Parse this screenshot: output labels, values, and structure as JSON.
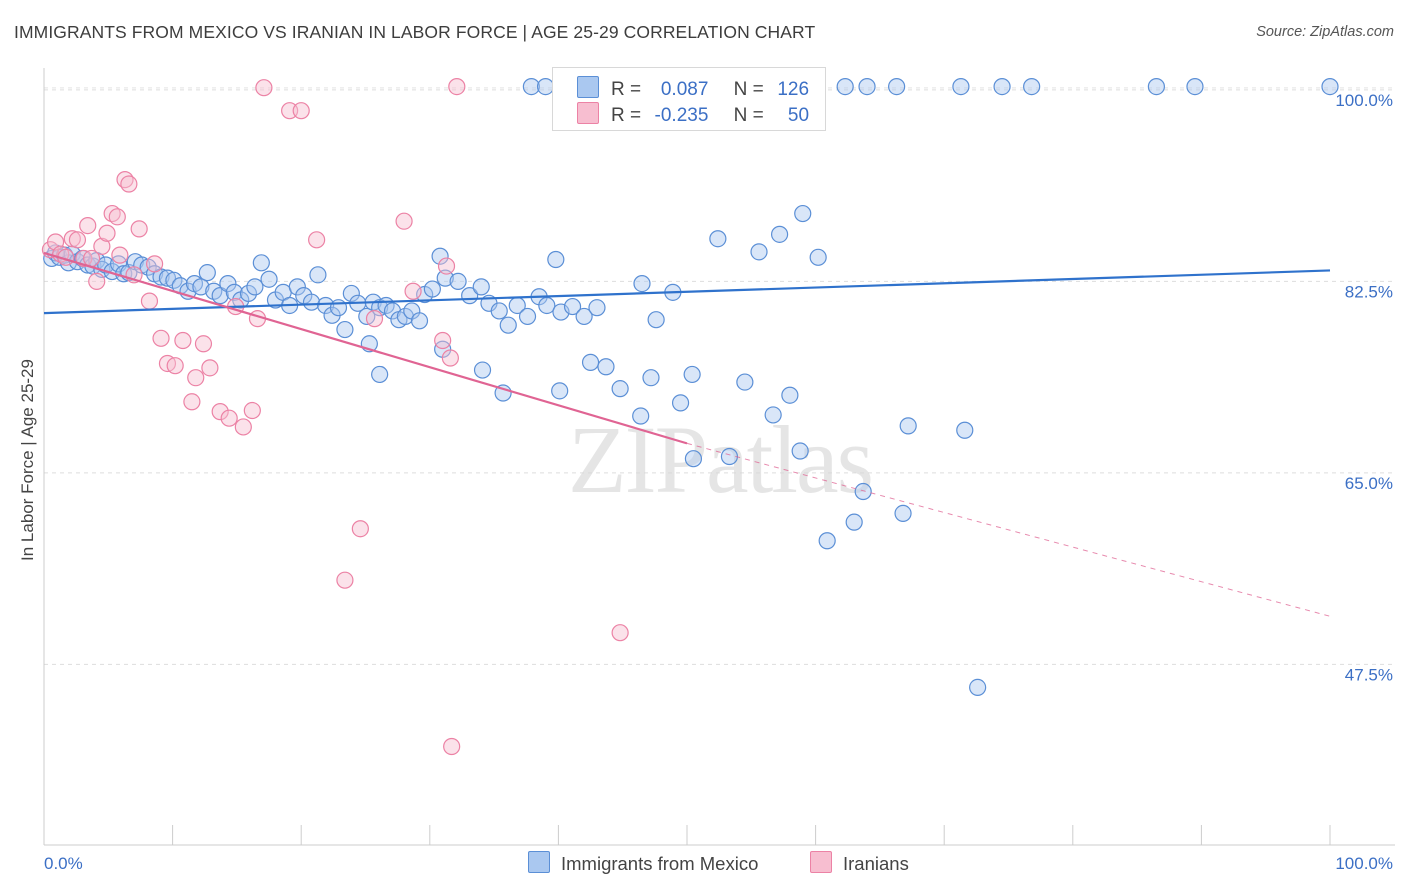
{
  "title": "IMMIGRANTS FROM MEXICO VS IRANIAN IN LABOR FORCE | AGE 25-29 CORRELATION CHART",
  "source": "Source: ZipAtlas.com",
  "watermark": "ZIPatlas",
  "legend": {
    "rows": [
      {
        "r_label": "R =",
        "r_value": "0.087",
        "n_label": "N =",
        "n_value": "126"
      },
      {
        "r_label": "R =",
        "r_value": "-0.235",
        "n_label": "N =",
        "n_value": "50"
      }
    ]
  },
  "bottom_legend": [
    "Immigrants from Mexico",
    "Iranians"
  ],
  "colors": {
    "blue_fill": "#aac8f0",
    "blue_stroke": "#5b8fd6",
    "blue_line": "#2f72cc",
    "pink_fill": "#f7bed0",
    "pink_stroke": "#ec82a5",
    "pink_line": "#e06493",
    "axis_text": "#3b6fc5"
  },
  "chart_data": {
    "type": "scatter",
    "title": "IMMIGRANTS FROM MEXICO VS IRANIAN IN LABOR FORCE | AGE 25-29 CORRELATION CHART",
    "xlabel": "",
    "ylabel": "In Labor Force | Age 25-29",
    "xlim": [
      0,
      100
    ],
    "ylim": [
      31,
      102
    ],
    "x_tick_labels": [
      "0.0%",
      "100.0%"
    ],
    "y_ticks": [
      47.5,
      65.0,
      82.5,
      100.0
    ],
    "y_tick_labels": [
      "47.5%",
      "65.0%",
      "82.5%",
      "100.0%"
    ],
    "grid": "horizontal dashed",
    "legend_position": "top-center",
    "series": [
      {
        "name": "Immigrants from Mexico",
        "trend": {
          "x": [
            0,
            100
          ],
          "y": [
            79.6,
            83.5
          ]
        },
        "points": [
          [
            0.6,
            84.6
          ],
          [
            0.9,
            85.1
          ],
          [
            1.2,
            84.7
          ],
          [
            1.6,
            84.9
          ],
          [
            1.9,
            84.2
          ],
          [
            2.2,
            85.0
          ],
          [
            2.6,
            84.3
          ],
          [
            3.0,
            84.6
          ],
          [
            3.4,
            84.0
          ],
          [
            3.8,
            83.9
          ],
          [
            4.1,
            84.4
          ],
          [
            4.5,
            83.6
          ],
          [
            4.8,
            84.0
          ],
          [
            5.3,
            83.4
          ],
          [
            5.8,
            84.1
          ],
          [
            6.2,
            83.2
          ],
          [
            6.6,
            83.3
          ],
          [
            7.1,
            84.3
          ],
          [
            7.6,
            84.0
          ],
          [
            8.1,
            83.8
          ],
          [
            8.6,
            83.2
          ],
          [
            9.1,
            82.9
          ],
          [
            9.6,
            82.8
          ],
          [
            10.1,
            82.6
          ],
          [
            10.6,
            82.1
          ],
          [
            11.2,
            81.6
          ],
          [
            11.7,
            82.3
          ],
          [
            12.2,
            82.0
          ],
          [
            12.7,
            83.3
          ],
          [
            13.2,
            81.6
          ],
          [
            13.7,
            81.2
          ],
          [
            14.3,
            82.3
          ],
          [
            14.8,
            81.5
          ],
          [
            15.3,
            80.8
          ],
          [
            15.9,
            81.4
          ],
          [
            16.4,
            82.0
          ],
          [
            16.9,
            84.2
          ],
          [
            17.5,
            82.7
          ],
          [
            18.0,
            80.8
          ],
          [
            18.6,
            81.5
          ],
          [
            19.1,
            80.3
          ],
          [
            19.7,
            82.0
          ],
          [
            20.2,
            81.2
          ],
          [
            20.8,
            80.6
          ],
          [
            21.3,
            83.1
          ],
          [
            21.9,
            80.3
          ],
          [
            22.4,
            79.4
          ],
          [
            22.9,
            80.1
          ],
          [
            23.4,
            78.1
          ],
          [
            23.9,
            81.4
          ],
          [
            24.4,
            80.5
          ],
          [
            25.1,
            79.3
          ],
          [
            25.6,
            80.6
          ],
          [
            26.1,
            80.1
          ],
          [
            26.6,
            80.3
          ],
          [
            27.1,
            79.8
          ],
          [
            27.6,
            79.0
          ],
          [
            28.1,
            79.3
          ],
          [
            28.6,
            79.8
          ],
          [
            29.2,
            78.9
          ],
          [
            29.6,
            81.3
          ],
          [
            30.2,
            81.8
          ],
          [
            30.8,
            84.8
          ],
          [
            31.2,
            82.8
          ],
          [
            32.2,
            82.5
          ],
          [
            33.1,
            81.2
          ],
          [
            34.0,
            82.0
          ],
          [
            34.6,
            80.5
          ],
          [
            35.4,
            79.8
          ],
          [
            36.1,
            78.5
          ],
          [
            36.8,
            80.3
          ],
          [
            37.6,
            79.3
          ],
          [
            38.5,
            81.1
          ],
          [
            39.1,
            80.3
          ],
          [
            39.8,
            84.5
          ],
          [
            40.2,
            79.7
          ],
          [
            41.1,
            80.2
          ],
          [
            42.0,
            79.3
          ],
          [
            43.0,
            80.1
          ],
          [
            46.5,
            82.3
          ],
          [
            47.6,
            79.0
          ],
          [
            48.9,
            81.5
          ],
          [
            52.4,
            86.4
          ],
          [
            55.6,
            85.2
          ],
          [
            57.2,
            86.8
          ],
          [
            59.0,
            88.7
          ],
          [
            60.2,
            84.7
          ],
          [
            37.9,
            100.3
          ],
          [
            39.0,
            100.3
          ],
          [
            42.5,
            100.3
          ],
          [
            43.0,
            100.3
          ],
          [
            43.7,
            100.3
          ],
          [
            46.1,
            100.3
          ],
          [
            48.4,
            100.3
          ],
          [
            50.2,
            100.3
          ],
          [
            52.1,
            100.3
          ],
          [
            53.9,
            100.3
          ],
          [
            55.7,
            100.3
          ],
          [
            60.1,
            100.3
          ],
          [
            62.3,
            100.3
          ],
          [
            64.0,
            100.3
          ],
          [
            66.3,
            100.3
          ],
          [
            71.3,
            100.3
          ],
          [
            74.5,
            100.3
          ],
          [
            76.8,
            100.3
          ],
          [
            86.5,
            100.3
          ],
          [
            89.5,
            100.3
          ],
          [
            100.0,
            100.3
          ],
          [
            25.3,
            76.8
          ],
          [
            26.1,
            74.0
          ],
          [
            31.0,
            76.3
          ],
          [
            34.1,
            74.4
          ],
          [
            35.7,
            72.3
          ],
          [
            40.1,
            72.5
          ],
          [
            42.5,
            75.1
          ],
          [
            43.7,
            74.7
          ],
          [
            44.8,
            72.7
          ],
          [
            46.4,
            70.2
          ],
          [
            47.2,
            73.7
          ],
          [
            49.5,
            71.4
          ],
          [
            50.4,
            74.0
          ],
          [
            50.5,
            66.3
          ],
          [
            53.3,
            66.5
          ],
          [
            54.5,
            73.3
          ],
          [
            56.7,
            70.3
          ],
          [
            58.0,
            72.1
          ],
          [
            58.8,
            67.0
          ],
          [
            60.9,
            58.8
          ],
          [
            63.0,
            60.5
          ],
          [
            63.7,
            63.3
          ],
          [
            66.8,
            61.3
          ],
          [
            67.2,
            69.3
          ],
          [
            71.6,
            68.9
          ],
          [
            72.6,
            45.4
          ]
        ]
      },
      {
        "name": "Iranians",
        "trend": {
          "x": [
            0,
            50
          ],
          "y": [
            85.1,
            67.7
          ]
        },
        "trend_extension": {
          "x": [
            50,
            100
          ],
          "y": [
            67.7,
            51.9
          ]
        },
        "points": [
          [
            0.5,
            85.4
          ],
          [
            0.9,
            86.1
          ],
          [
            1.3,
            85.0
          ],
          [
            1.7,
            84.7
          ],
          [
            2.2,
            86.4
          ],
          [
            2.6,
            86.3
          ],
          [
            3.1,
            84.6
          ],
          [
            3.4,
            87.6
          ],
          [
            3.7,
            84.6
          ],
          [
            4.1,
            82.5
          ],
          [
            4.5,
            85.7
          ],
          [
            4.9,
            86.9
          ],
          [
            5.3,
            88.7
          ],
          [
            5.7,
            88.4
          ],
          [
            5.9,
            84.9
          ],
          [
            6.3,
            91.8
          ],
          [
            6.6,
            91.4
          ],
          [
            7.0,
            83.1
          ],
          [
            7.4,
            87.3
          ],
          [
            8.2,
            80.7
          ],
          [
            8.6,
            84.1
          ],
          [
            9.1,
            77.3
          ],
          [
            9.6,
            75.0
          ],
          [
            10.2,
            74.8
          ],
          [
            10.8,
            77.1
          ],
          [
            11.5,
            71.5
          ],
          [
            11.8,
            73.7
          ],
          [
            12.4,
            76.8
          ],
          [
            12.9,
            74.6
          ],
          [
            13.7,
            70.6
          ],
          [
            14.4,
            70.0
          ],
          [
            14.9,
            80.2
          ],
          [
            15.5,
            69.2
          ],
          [
            16.2,
            70.7
          ],
          [
            16.6,
            79.1
          ],
          [
            17.1,
            100.2
          ],
          [
            19.1,
            98.1
          ],
          [
            20.0,
            98.1
          ],
          [
            21.2,
            86.3
          ],
          [
            23.4,
            55.2
          ],
          [
            24.6,
            59.9
          ],
          [
            25.7,
            79.1
          ],
          [
            28.0,
            88.0
          ],
          [
            28.7,
            81.6
          ],
          [
            31.0,
            77.1
          ],
          [
            31.3,
            83.9
          ],
          [
            31.6,
            75.5
          ],
          [
            31.7,
            40.0
          ],
          [
            32.1,
            100.3
          ],
          [
            44.8,
            50.4
          ]
        ]
      }
    ]
  }
}
